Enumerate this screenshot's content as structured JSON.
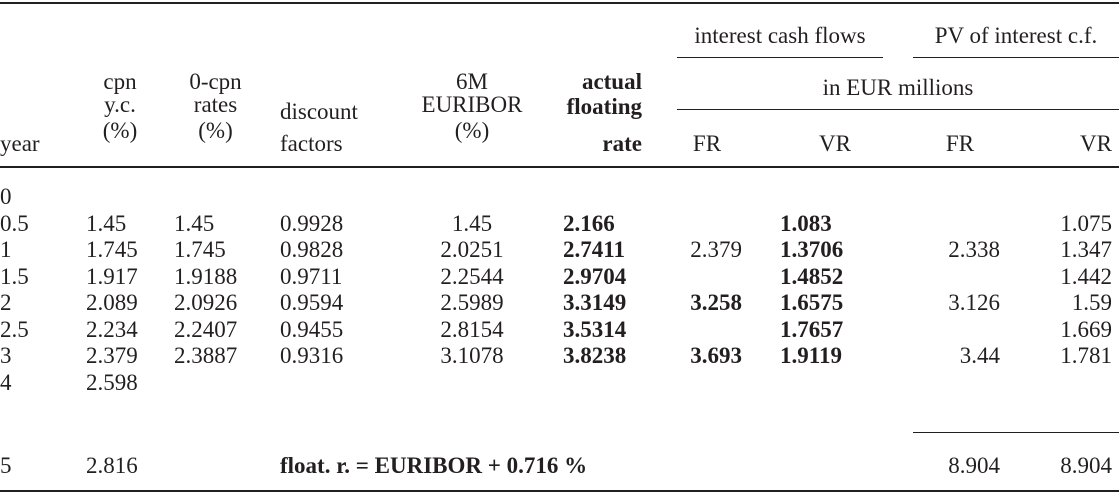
{
  "header": {
    "group_cash_flows": "interest cash flows",
    "group_pv": "PV of interest c.f.",
    "units": "in EUR millions",
    "year": "year",
    "cpn_yc": [
      "cpn",
      "y.c.",
      "(%)"
    ],
    "zero_cpn": [
      "0-cpn",
      "rates",
      "(%)"
    ],
    "discount": [
      "discount",
      "factors"
    ],
    "euribor": [
      "6M",
      "EURIBOR",
      "(%)"
    ],
    "actual_floating": [
      "actual",
      "floating",
      "rate"
    ],
    "fr_cf": "FR",
    "vr_cf": "VR",
    "fr_pv": "FR",
    "vr_pv": "VR"
  },
  "rows": [
    {
      "year": "0",
      "cpn": "",
      "zero": "",
      "df": "",
      "euribor": "",
      "float": "",
      "fr_cf": "",
      "vr_cf": "",
      "fr_pv": "",
      "vr_pv": ""
    },
    {
      "year": "0.5",
      "cpn": "1.45",
      "zero": "1.45",
      "df": "0.9928",
      "euribor": "1.45",
      "float": "2.166",
      "fr_cf": "",
      "vr_cf": "1.083",
      "fr_pv": "",
      "vr_pv": "1.075"
    },
    {
      "year": "1",
      "cpn": "1.745",
      "zero": "1.745",
      "df": "0.9828",
      "euribor": "2.0251",
      "float": "2.7411",
      "fr_cf": "2.379",
      "vr_cf": "1.3706",
      "fr_pv": "2.338",
      "vr_pv": "1.347"
    },
    {
      "year": "1.5",
      "cpn": "1.917",
      "zero": "1.9188",
      "df": "0.9711",
      "euribor": "2.2544",
      "float": "2.9704",
      "fr_cf": "",
      "vr_cf": "1.4852",
      "fr_pv": "",
      "vr_pv": "1.442"
    },
    {
      "year": "2",
      "cpn": "2.089",
      "zero": "2.0926",
      "df": "0.9594",
      "euribor": "2.5989",
      "float": "3.3149",
      "fr_cf": "3.258",
      "vr_cf": "1.6575",
      "fr_pv": "3.126",
      "vr_pv": "1.59"
    },
    {
      "year": "2.5",
      "cpn": "2.234",
      "zero": "2.2407",
      "df": "0.9455",
      "euribor": "2.8154",
      "float": "3.5314",
      "fr_cf": "",
      "vr_cf": "1.7657",
      "fr_pv": "",
      "vr_pv": "1.669"
    },
    {
      "year": "3",
      "cpn": "2.379",
      "zero": "2.3887",
      "df": "0.9316",
      "euribor": "3.1078",
      "float": "3.8238",
      "fr_cf": "3.693",
      "vr_cf": "1.9119",
      "fr_pv": "3.44",
      "vr_pv": "1.781"
    },
    {
      "year": "4",
      "cpn": "2.598",
      "zero": "",
      "df": "",
      "euribor": "",
      "float": "",
      "fr_cf": "",
      "vr_cf": "",
      "fr_pv": "",
      "vr_pv": ""
    }
  ],
  "summary": {
    "year": "5",
    "cpn": "2.816",
    "formula": "float. r. = EURIBOR + 0.716 %",
    "fr_pv_total": "8.904",
    "vr_pv_total": "8.904"
  }
}
